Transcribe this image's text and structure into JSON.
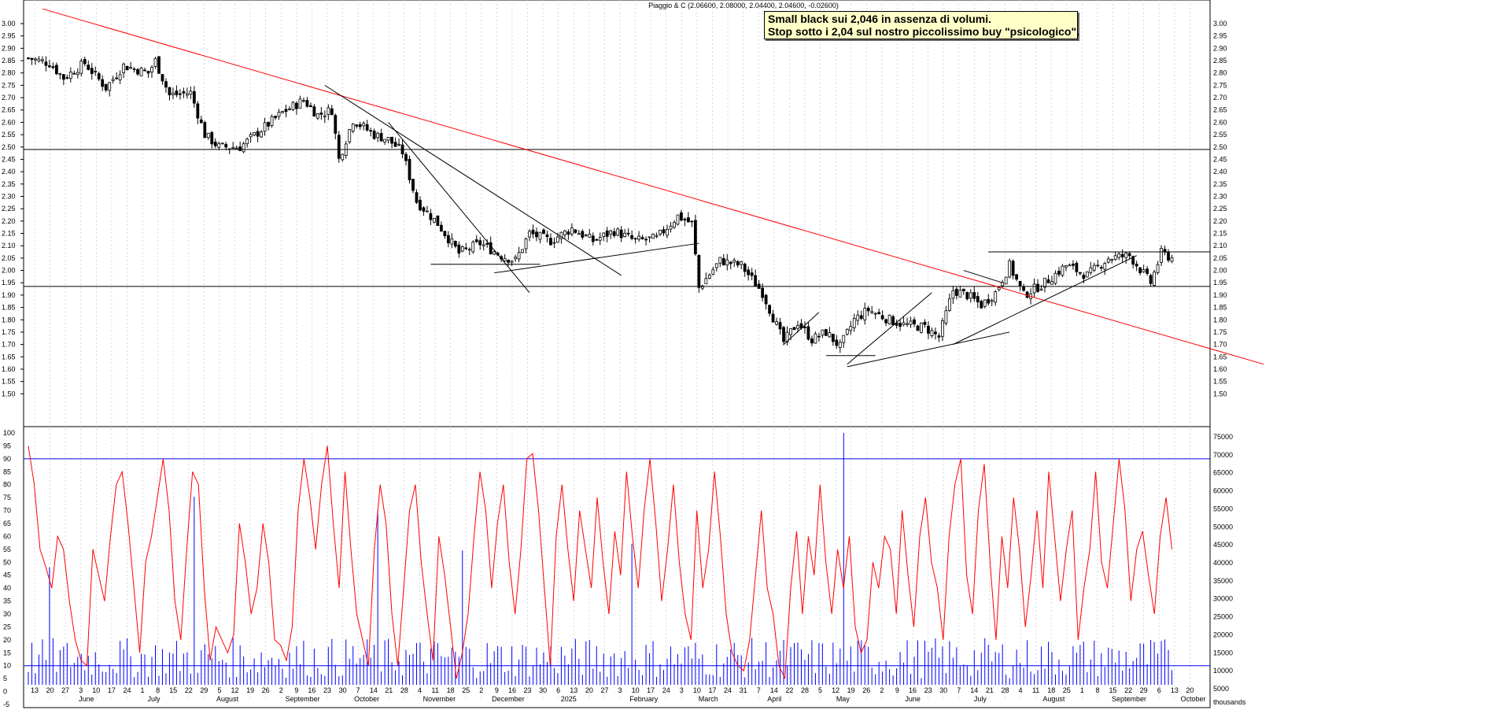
{
  "header": "Piaggio & C (2.06600, 2.08000, 2.04400, 2.04600, -0.02600)",
  "annotation": {
    "line1": "Small black sui 2,046 in assenza di volumi.",
    "line2": "Stop sotto i 2,04 sul nostro piccolissimo buy \"psicologico\"."
  },
  "colors": {
    "price": "#000000",
    "trend_red": "#ff0000",
    "oscillator": "#ff0000",
    "volume": "#0000ff",
    "grid": "#c8c8c8",
    "band": "#0000ff"
  },
  "price_axis": {
    "min": 1.45,
    "max": 3.0,
    "ticks": [
      "3.00",
      "2.95",
      "2.90",
      "2.85",
      "2.80",
      "2.75",
      "2.70",
      "2.65",
      "2.60",
      "2.55",
      "2.50",
      "2.45",
      "2.40",
      "2.35",
      "2.30",
      "2.25",
      "2.20",
      "2.15",
      "2.10",
      "2.05",
      "2.00",
      "1.95",
      "1.90",
      "1.85",
      "1.80",
      "1.75",
      "1.70",
      "1.65",
      "1.60",
      "1.55",
      "1.50"
    ]
  },
  "osc_axis": {
    "min": -5,
    "max": 100,
    "ticks": [
      "100",
      "95",
      "90",
      "85",
      "80",
      "75",
      "70",
      "65",
      "60",
      "55",
      "50",
      "45",
      "40",
      "35",
      "30",
      "25",
      "20",
      "15",
      "10",
      "5",
      "0",
      "-5"
    ]
  },
  "vol_axis": {
    "ticks": [
      "75000",
      "70000",
      "65000",
      "60000",
      "55000",
      "50000",
      "45000",
      "40000",
      "35000",
      "30000",
      "25000",
      "20000",
      "15000",
      "10000",
      "5000"
    ],
    "unit": "thousands"
  },
  "x_axis": {
    "days": [
      "13",
      "20",
      "27",
      "3",
      "10",
      "17",
      "24",
      "1",
      "8",
      "15",
      "22",
      "29",
      "5",
      "12",
      "19",
      "26",
      "2",
      "9",
      "16",
      "23",
      "30",
      "7",
      "14",
      "21",
      "28",
      "4",
      "11",
      "18",
      "25",
      "2",
      "9",
      "16",
      "23",
      "30",
      "6",
      "13",
      "20",
      "27",
      "3",
      "10",
      "17",
      "24",
      "3",
      "10",
      "17",
      "24",
      "31",
      "7",
      "14",
      "22",
      "28",
      "5",
      "12",
      "19",
      "26",
      "2",
      "9",
      "16",
      "23",
      "30",
      "7",
      "14",
      "21",
      "28",
      "4",
      "11",
      "18",
      "25",
      "1",
      "8",
      "15",
      "22",
      "29",
      "6",
      "13",
      "20"
    ],
    "months": [
      "June",
      "July",
      "August",
      "September",
      "October",
      "November",
      "December",
      "2025",
      "February",
      "March",
      "April",
      "May",
      "June",
      "July",
      "August",
      "September",
      "October"
    ]
  },
  "chart_data": {
    "type": "candlestick",
    "title": "Piaggio & C",
    "last_bar": {
      "open": 2.066,
      "high": 2.08,
      "low": 2.044,
      "close": 2.046,
      "change": -0.026
    },
    "horizontal_levels": [
      2.49,
      1.935,
      2.075,
      2.025,
      1.655
    ],
    "price_path": [
      {
        "d": 0,
        "p": 2.86
      },
      {
        "d": 6,
        "p": 2.84
      },
      {
        "d": 10,
        "p": 2.78
      },
      {
        "d": 16,
        "p": 2.84
      },
      {
        "d": 22,
        "p": 2.74
      },
      {
        "d": 27,
        "p": 2.83
      },
      {
        "d": 34,
        "p": 2.8
      },
      {
        "d": 36,
        "p": 2.85
      },
      {
        "d": 40,
        "p": 2.71
      },
      {
        "d": 46,
        "p": 2.72
      },
      {
        "d": 50,
        "p": 2.55
      },
      {
        "d": 54,
        "p": 2.5
      },
      {
        "d": 60,
        "p": 2.5
      },
      {
        "d": 66,
        "p": 2.57
      },
      {
        "d": 72,
        "p": 2.64
      },
      {
        "d": 78,
        "p": 2.69
      },
      {
        "d": 82,
        "p": 2.63
      },
      {
        "d": 86,
        "p": 2.65
      },
      {
        "d": 88,
        "p": 2.45
      },
      {
        "d": 92,
        "p": 2.61
      },
      {
        "d": 98,
        "p": 2.55
      },
      {
        "d": 102,
        "p": 2.53
      },
      {
        "d": 106,
        "p": 2.48
      },
      {
        "d": 110,
        "p": 2.28
      },
      {
        "d": 116,
        "p": 2.19
      },
      {
        "d": 122,
        "p": 2.07
      },
      {
        "d": 128,
        "p": 2.11
      },
      {
        "d": 134,
        "p": 2.06
      },
      {
        "d": 138,
        "p": 2.04
      },
      {
        "d": 142,
        "p": 2.15
      },
      {
        "d": 148,
        "p": 2.12
      },
      {
        "d": 154,
        "p": 2.17
      },
      {
        "d": 160,
        "p": 2.12
      },
      {
        "d": 166,
        "p": 2.16
      },
      {
        "d": 172,
        "p": 2.12
      },
      {
        "d": 178,
        "p": 2.13
      },
      {
        "d": 184,
        "p": 2.22
      },
      {
        "d": 188,
        "p": 2.19
      },
      {
        "d": 190,
        "p": 1.93
      },
      {
        "d": 196,
        "p": 2.04
      },
      {
        "d": 202,
        "p": 2.02
      },
      {
        "d": 208,
        "p": 1.91
      },
      {
        "d": 214,
        "p": 1.71
      },
      {
        "d": 218,
        "p": 1.79
      },
      {
        "d": 222,
        "p": 1.72
      },
      {
        "d": 226,
        "p": 1.75
      },
      {
        "d": 230,
        "p": 1.69
      },
      {
        "d": 234,
        "p": 1.8
      },
      {
        "d": 238,
        "p": 1.84
      },
      {
        "d": 244,
        "p": 1.8
      },
      {
        "d": 248,
        "p": 1.78
      },
      {
        "d": 254,
        "p": 1.77
      },
      {
        "d": 258,
        "p": 1.73
      },
      {
        "d": 262,
        "p": 1.92
      },
      {
        "d": 266,
        "p": 1.9
      },
      {
        "d": 270,
        "p": 1.86
      },
      {
        "d": 274,
        "p": 1.91
      },
      {
        "d": 278,
        "p": 2.02
      },
      {
        "d": 282,
        "p": 1.9
      },
      {
        "d": 288,
        "p": 1.95
      },
      {
        "d": 294,
        "p": 2.02
      },
      {
        "d": 300,
        "p": 1.98
      },
      {
        "d": 306,
        "p": 2.05
      },
      {
        "d": 312,
        "p": 2.06
      },
      {
        "d": 318,
        "p": 1.95
      },
      {
        "d": 321,
        "p": 2.07
      },
      {
        "d": 324,
        "p": 2.05
      }
    ],
    "trendlines": [
      {
        "color": "red",
        "from": {
          "d": 4,
          "p": 3.06
        },
        "to": {
          "d": 350,
          "p": 1.62
        }
      },
      {
        "color": "black",
        "from": {
          "d": 84,
          "p": 2.75
        },
        "to": {
          "d": 168,
          "p": 1.98
        }
      },
      {
        "color": "black",
        "from": {
          "d": 102,
          "p": 2.6
        },
        "to": {
          "d": 142,
          "p": 1.91
        }
      },
      {
        "color": "black",
        "from": {
          "d": 132,
          "p": 1.99
        },
        "to": {
          "d": 190,
          "p": 2.11
        }
      },
      {
        "color": "black",
        "from": {
          "d": 214,
          "p": 1.7
        },
        "to": {
          "d": 224,
          "p": 1.83
        }
      },
      {
        "color": "black",
        "from": {
          "d": 232,
          "p": 1.62
        },
        "to": {
          "d": 256,
          "p": 1.91
        }
      },
      {
        "color": "black",
        "from": {
          "d": 232,
          "p": 1.61
        },
        "to": {
          "d": 278,
          "p": 1.75
        }
      },
      {
        "color": "black",
        "from": {
          "d": 262,
          "p": 1.7
        },
        "to": {
          "d": 314,
          "p": 2.06
        }
      },
      {
        "color": "black",
        "from": {
          "d": 265,
          "p": 2.0
        },
        "to": {
          "d": 276,
          "p": 1.95
        }
      }
    ],
    "oscillator": {
      "name": "",
      "upper_band": 90,
      "lower_band": 10,
      "values": [
        95,
        80,
        55,
        48,
        40,
        60,
        55,
        35,
        20,
        12,
        10,
        55,
        45,
        35,
        60,
        80,
        85,
        65,
        40,
        15,
        50,
        60,
        75,
        90,
        70,
        35,
        20,
        55,
        85,
        80,
        40,
        12,
        25,
        20,
        15,
        22,
        65,
        50,
        30,
        40,
        65,
        50,
        20,
        18,
        12,
        25,
        70,
        90,
        75,
        55,
        80,
        95,
        65,
        40,
        85,
        55,
        30,
        20,
        10,
        55,
        80,
        65,
        30,
        10,
        40,
        70,
        80,
        50,
        30,
        12,
        60,
        45,
        25,
        5,
        15,
        30,
        60,
        85,
        70,
        40,
        65,
        80,
        50,
        30,
        55,
        90,
        92,
        70,
        40,
        10,
        60,
        80,
        55,
        35,
        70,
        55,
        40,
        75,
        50,
        30,
        62,
        45,
        85,
        60,
        40,
        70,
        90,
        65,
        35,
        55,
        80,
        50,
        30,
        20,
        70,
        40,
        55,
        85,
        60,
        30,
        15,
        10,
        8,
        20,
        45,
        70,
        40,
        30,
        10,
        5,
        40,
        62,
        30,
        60,
        45,
        80,
        50,
        30,
        55,
        40,
        60,
        25,
        15,
        20,
        50,
        40,
        60,
        55,
        30,
        70,
        45,
        25,
        60,
        75,
        50,
        40,
        20,
        60,
        80,
        90,
        45,
        30,
        70,
        88,
        50,
        20,
        60,
        40,
        75,
        55,
        25,
        45,
        70,
        40,
        85,
        60,
        35,
        55,
        70,
        20,
        40,
        55,
        85,
        50,
        40,
        65,
        90,
        70,
        35,
        55,
        62,
        45,
        30,
        60,
        75,
        55
      ]
    },
    "volume": {
      "spikes": [
        {
          "d": 231,
          "v": 75000
        },
        {
          "d": 99,
          "v": 52000
        },
        {
          "d": 171,
          "v": 42000
        },
        {
          "d": 123,
          "v": 40000
        },
        {
          "d": 47,
          "v": 56000
        },
        {
          "d": 6,
          "v": 35000
        }
      ]
    }
  }
}
